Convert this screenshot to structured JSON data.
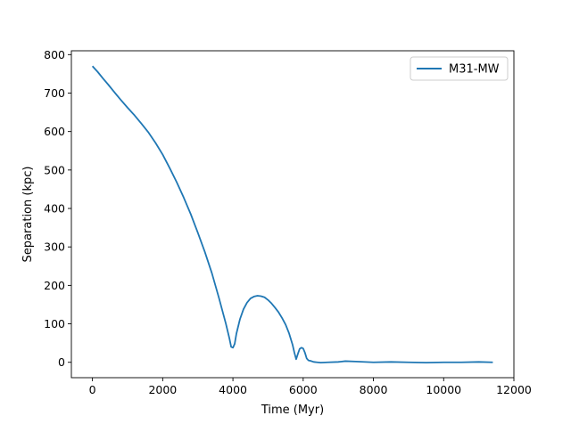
{
  "chart_data": {
    "type": "line",
    "title": "",
    "xlabel": "Time (Myr)",
    "ylabel": "Separation (kpc)",
    "xlim": [
      -600,
      12000
    ],
    "ylim": [
      -40,
      810
    ],
    "xticks": [
      0,
      2000,
      4000,
      6000,
      8000,
      10000,
      12000
    ],
    "yticks": [
      0,
      100,
      200,
      300,
      400,
      500,
      600,
      700,
      800
    ],
    "grid": false,
    "legend_position": "top-right",
    "series": [
      {
        "name": "M31-MW",
        "color": "#1f77b4",
        "x": [
          0,
          150,
          300,
          450,
          600,
          800,
          1000,
          1200,
          1400,
          1600,
          1800,
          2000,
          2200,
          2400,
          2600,
          2800,
          3000,
          3200,
          3400,
          3600,
          3800,
          3900,
          3950,
          4000,
          4050,
          4100,
          4200,
          4300,
          4400,
          4500,
          4600,
          4700,
          4800,
          4900,
          5000,
          5100,
          5200,
          5300,
          5400,
          5500,
          5600,
          5700,
          5750,
          5800,
          5850,
          5900,
          5950,
          6000,
          6050,
          6100,
          6150,
          6200,
          6300,
          6400,
          6500,
          6700,
          7000,
          7200,
          7500,
          8000,
          8500,
          9000,
          9500,
          10000,
          10500,
          11000,
          11400
        ],
        "y": [
          770,
          755,
          738,
          722,
          705,
          683,
          662,
          642,
          620,
          597,
          570,
          540,
          505,
          468,
          428,
          385,
          337,
          287,
          232,
          168,
          100,
          62,
          40,
          38,
          48,
          75,
          112,
          138,
          155,
          166,
          171,
          173,
          172,
          169,
          162,
          153,
          142,
          130,
          115,
          98,
          75,
          45,
          25,
          8,
          22,
          35,
          38,
          36,
          25,
          10,
          5,
          4,
          1,
          0,
          -1,
          0,
          1,
          3,
          2,
          0,
          1,
          0,
          -1,
          0,
          0,
          1,
          0
        ]
      }
    ]
  }
}
